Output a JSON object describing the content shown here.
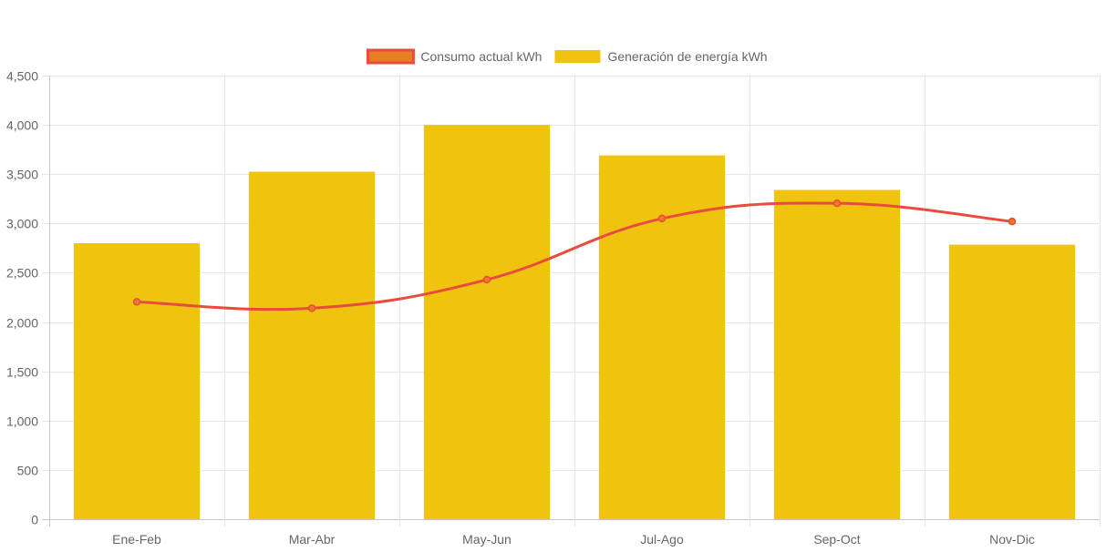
{
  "chart_data": {
    "type": "bar",
    "categories": [
      "Ene-Feb",
      "Mar-Abr",
      "May-Jun",
      "Jul-Ago",
      "Sep-Oct",
      "Nov-Dic"
    ],
    "series": [
      {
        "name": "Generación de energía kWh",
        "type": "bar",
        "values": [
          2800,
          3525,
          4000,
          3690,
          3340,
          2785
        ],
        "color": "#f0c40e"
      },
      {
        "name": "Consumo actual kWh",
        "type": "line",
        "values": [
          2205,
          2140,
          2430,
          3050,
          3205,
          3020
        ],
        "color": "#e74c3c",
        "point_color": "#e67e22"
      }
    ],
    "legend": {
      "position": "top",
      "items": [
        "Consumo actual kWh",
        "Generación de energía kWh"
      ]
    },
    "ylim": [
      0,
      4500
    ],
    "yticks": [
      "0",
      "500",
      "1,000",
      "1,500",
      "2,000",
      "2,500",
      "3,000",
      "3,500",
      "4,000",
      "4,500"
    ],
    "grid": true,
    "title": "",
    "xlabel": "",
    "ylabel": ""
  }
}
